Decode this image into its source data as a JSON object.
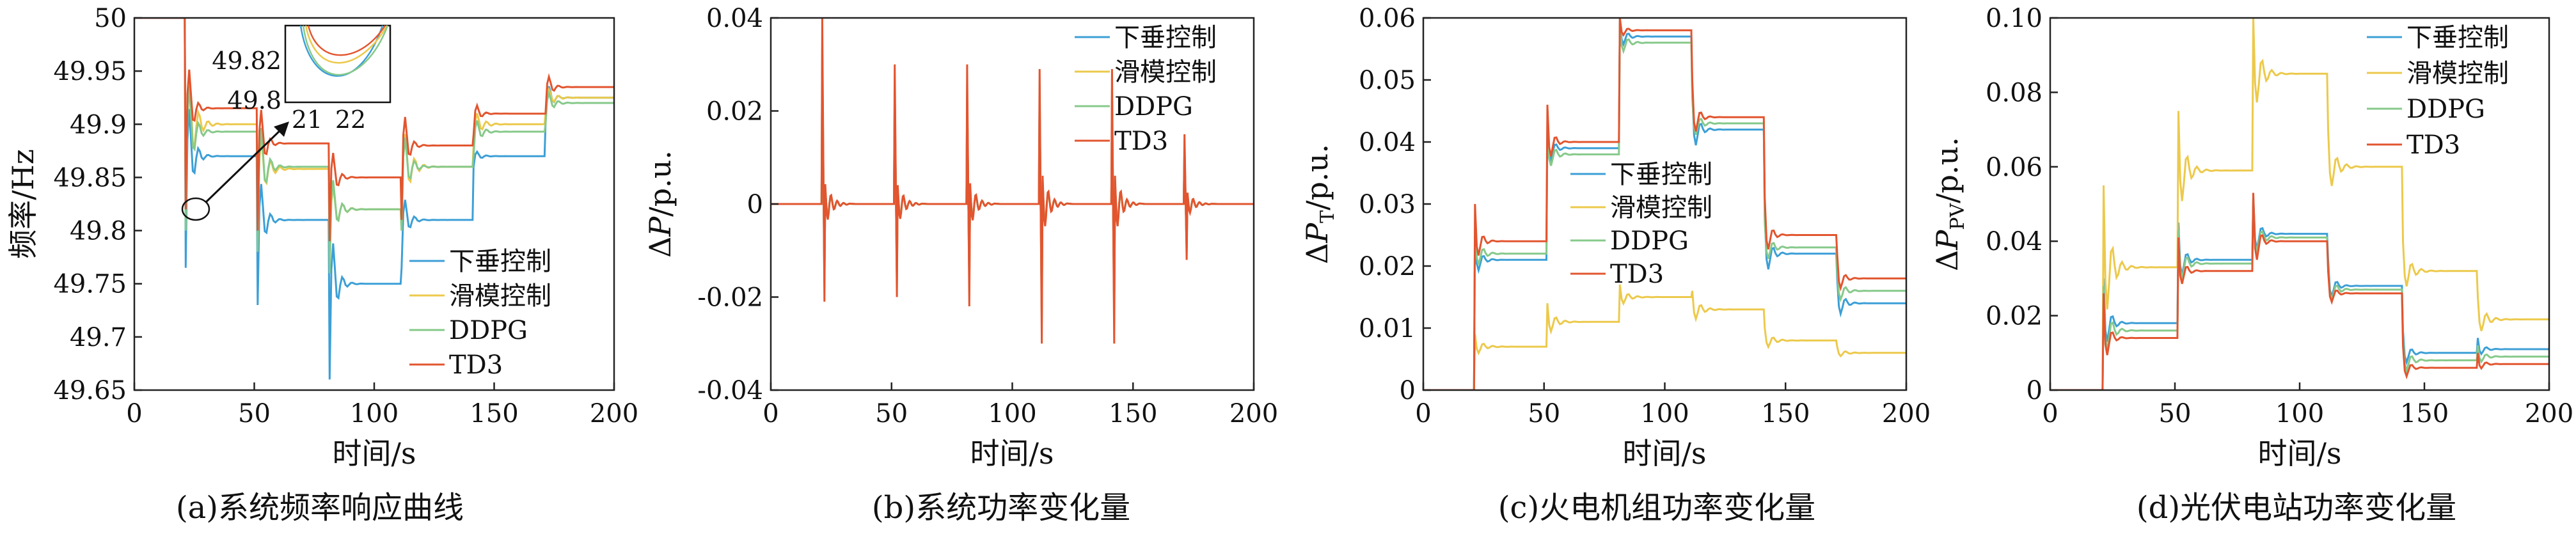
{
  "colors": {
    "droop": "#3c9fd6",
    "smc": "#ecc94b",
    "ddpg": "#86c98a",
    "td3": "#e2552f"
  },
  "chart_data": [
    {
      "id": "a",
      "type": "line",
      "caption": "(a)系统频率响应曲线",
      "xlabel": "时间/s",
      "ylabel": "频率/Hz",
      "xlim": [
        0,
        200
      ],
      "ylim": [
        49.65,
        50
      ],
      "xticks": [
        "0",
        "50",
        "100",
        "150",
        "200"
      ],
      "yticks": [
        "49.65",
        "49.7",
        "49.75",
        "49.8",
        "49.85",
        "49.9",
        "49.95",
        "50"
      ],
      "grid": false,
      "legend_position": "lower-right",
      "step_times": [
        21,
        51,
        81,
        111,
        141,
        171
      ],
      "series": [
        {
          "name": "下垂控制",
          "color_key": "droop",
          "start": 50,
          "levels": [
            49.87,
            49.81,
            49.75,
            49.81,
            49.87,
            49.925
          ],
          "dips": [
            49.765,
            49.73,
            49.66,
            49.765,
            49.86,
            49.9
          ]
        },
        {
          "name": "滑模控制",
          "color_key": "smc",
          "start": 50,
          "levels": [
            49.9,
            49.858,
            49.82,
            49.86,
            49.9,
            49.925
          ],
          "dips": [
            49.81,
            49.8,
            49.78,
            49.8,
            49.88,
            49.91
          ]
        },
        {
          "name": "DDPG",
          "color_key": "ddpg",
          "start": 50,
          "levels": [
            49.893,
            49.86,
            49.82,
            49.86,
            49.893,
            49.92
          ],
          "dips": [
            49.8,
            49.78,
            49.76,
            49.8,
            49.87,
            49.9
          ]
        },
        {
          "name": "TD3",
          "color_key": "td3",
          "start": 50,
          "levels": [
            49.915,
            49.882,
            49.85,
            49.88,
            49.91,
            49.935
          ],
          "dips": [
            49.82,
            49.8,
            49.79,
            49.81,
            49.89,
            49.91
          ]
        }
      ],
      "annotation": {
        "type": "inset-zoom",
        "target_x": 21,
        "target_y": 49.8,
        "inset_xticks": [
          "21",
          "22"
        ],
        "inset_yticks": [
          "49.82",
          "49.8"
        ]
      }
    },
    {
      "id": "b",
      "type": "line",
      "caption": "(b)系统功率变化量",
      "xlabel": "时间/s",
      "ylabel": "ΔP/p.u.",
      "xlim": [
        0,
        200
      ],
      "ylim": [
        -0.04,
        0.04
      ],
      "xticks": [
        "0",
        "50",
        "100",
        "150",
        "200"
      ],
      "yticks": [
        "-0.04",
        "-0.02",
        "0",
        "0.02",
        "0.04"
      ],
      "grid": false,
      "legend_position": "top-right",
      "step_times": [
        21,
        51,
        81,
        111,
        141,
        171
      ],
      "spike_up": [
        0.04,
        0.03,
        0.03,
        0.029,
        0.029,
        0.015
      ],
      "spike_down": [
        -0.021,
        -0.02,
        -0.022,
        -0.03,
        -0.03,
        -0.012
      ],
      "series": [
        {
          "name": "下垂控制",
          "color_key": "droop"
        },
        {
          "name": "滑模控制",
          "color_key": "smc"
        },
        {
          "name": "DDPG",
          "color_key": "ddpg"
        },
        {
          "name": "TD3",
          "color_key": "td3"
        }
      ]
    },
    {
      "id": "c",
      "type": "line",
      "caption": "(c)火电机组功率变化量",
      "xlabel": "时间/s",
      "ylabel": "ΔP_T/p.u.",
      "xlim": [
        0,
        200
      ],
      "ylim": [
        0,
        0.06
      ],
      "xticks": [
        "0",
        "50",
        "100",
        "150",
        "200"
      ],
      "yticks": [
        "0",
        "0.01",
        "0.02",
        "0.03",
        "0.04",
        "0.05",
        "0.06"
      ],
      "grid": false,
      "legend_position": "center-left",
      "step_times": [
        21,
        51,
        81,
        111,
        141,
        171
      ],
      "series": [
        {
          "name": "下垂控制",
          "color_key": "droop",
          "levels": [
            0.021,
            0.039,
            0.057,
            0.042,
            0.022,
            0.014
          ],
          "overshoot": [
            0.025,
            0.043,
            0.06,
            0.048,
            0.028,
            0.018
          ]
        },
        {
          "name": "滑模控制",
          "color_key": "smc",
          "levels": [
            0.007,
            0.011,
            0.015,
            0.013,
            0.008,
            0.006
          ],
          "overshoot": [
            0.009,
            0.014,
            0.017,
            0.016,
            0.01,
            0.007
          ]
        },
        {
          "name": "DDPG",
          "color_key": "ddpg",
          "levels": [
            0.022,
            0.038,
            0.056,
            0.043,
            0.023,
            0.016
          ],
          "overshoot": [
            0.026,
            0.042,
            0.059,
            0.047,
            0.027,
            0.019
          ]
        },
        {
          "name": "TD3",
          "color_key": "td3",
          "levels": [
            0.024,
            0.04,
            0.058,
            0.044,
            0.025,
            0.018
          ],
          "overshoot": [
            0.03,
            0.046,
            0.06,
            0.05,
            0.031,
            0.022
          ]
        }
      ]
    },
    {
      "id": "d",
      "type": "line",
      "caption": "(d)光伏电站功率变化量",
      "xlabel": "时间/s",
      "ylabel": "ΔP_PV/p.u.",
      "xlim": [
        0,
        200
      ],
      "ylim": [
        0,
        0.1
      ],
      "xticks": [
        "0",
        "50",
        "100",
        "150",
        "200"
      ],
      "yticks": [
        "0",
        "0.02",
        "0.04",
        "0.06",
        "0.08",
        "0.10"
      ],
      "grid": false,
      "legend_position": "top-right",
      "step_times": [
        21,
        51,
        81,
        111,
        141,
        171
      ],
      "series": [
        {
          "name": "下垂控制",
          "color_key": "droop",
          "levels": [
            0.018,
            0.035,
            0.042,
            0.028,
            0.01,
            0.011
          ],
          "overshoot": [
            0.03,
            0.045,
            0.052,
            0.035,
            0.016,
            0.014
          ]
        },
        {
          "name": "滑模控制",
          "color_key": "smc",
          "levels": [
            0.033,
            0.059,
            0.085,
            0.06,
            0.032,
            0.019
          ],
          "overshoot": [
            0.055,
            0.075,
            0.1,
            0.07,
            0.04,
            0.025
          ]
        },
        {
          "name": "DDPG",
          "color_key": "ddpg",
          "levels": [
            0.016,
            0.034,
            0.041,
            0.027,
            0.008,
            0.009
          ],
          "overshoot": [
            0.028,
            0.043,
            0.05,
            0.033,
            0.014,
            0.012
          ]
        },
        {
          "name": "TD3",
          "color_key": "td3",
          "levels": [
            0.014,
            0.032,
            0.04,
            0.026,
            0.006,
            0.007
          ],
          "overshoot": [
            0.026,
            0.041,
            0.053,
            0.032,
            0.012,
            0.01
          ]
        }
      ]
    }
  ]
}
